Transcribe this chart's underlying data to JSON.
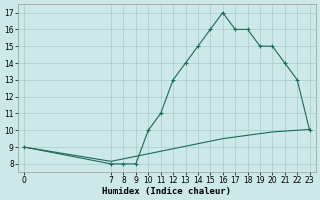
{
  "title": "",
  "xlabel": "Humidex (Indice chaleur)",
  "bg_color": "#cce8e8",
  "grid_color": "#aacccc",
  "line_color": "#1a6b5a",
  "xlim": [
    -0.5,
    23.5
  ],
  "ylim": [
    7.5,
    17.5
  ],
  "yticks": [
    8,
    9,
    10,
    11,
    12,
    13,
    14,
    15,
    16,
    17
  ],
  "xticks": [
    0,
    7,
    8,
    9,
    10,
    11,
    12,
    13,
    14,
    15,
    16,
    17,
    18,
    19,
    20,
    21,
    22,
    23
  ],
  "line1_x": [
    0,
    7,
    8,
    9,
    10,
    11,
    12,
    13,
    14,
    15,
    16,
    17,
    18,
    19,
    20,
    21,
    22,
    23
  ],
  "line1_y": [
    9.0,
    8.0,
    8.0,
    8.0,
    10.0,
    11.0,
    13.0,
    14.0,
    15.0,
    16.0,
    17.0,
    16.0,
    16.0,
    15.0,
    15.0,
    14.0,
    13.0,
    10.0
  ],
  "line2_x": [
    0,
    7,
    8,
    9,
    10,
    11,
    12,
    13,
    14,
    15,
    16,
    17,
    18,
    19,
    20,
    21,
    22,
    23
  ],
  "line2_y": [
    9.0,
    8.15,
    8.3,
    8.45,
    8.6,
    8.75,
    8.9,
    9.05,
    9.2,
    9.35,
    9.5,
    9.6,
    9.7,
    9.8,
    9.9,
    9.95,
    10.0,
    10.05
  ],
  "font_size_label": 6.5,
  "font_size_tick": 5.5
}
